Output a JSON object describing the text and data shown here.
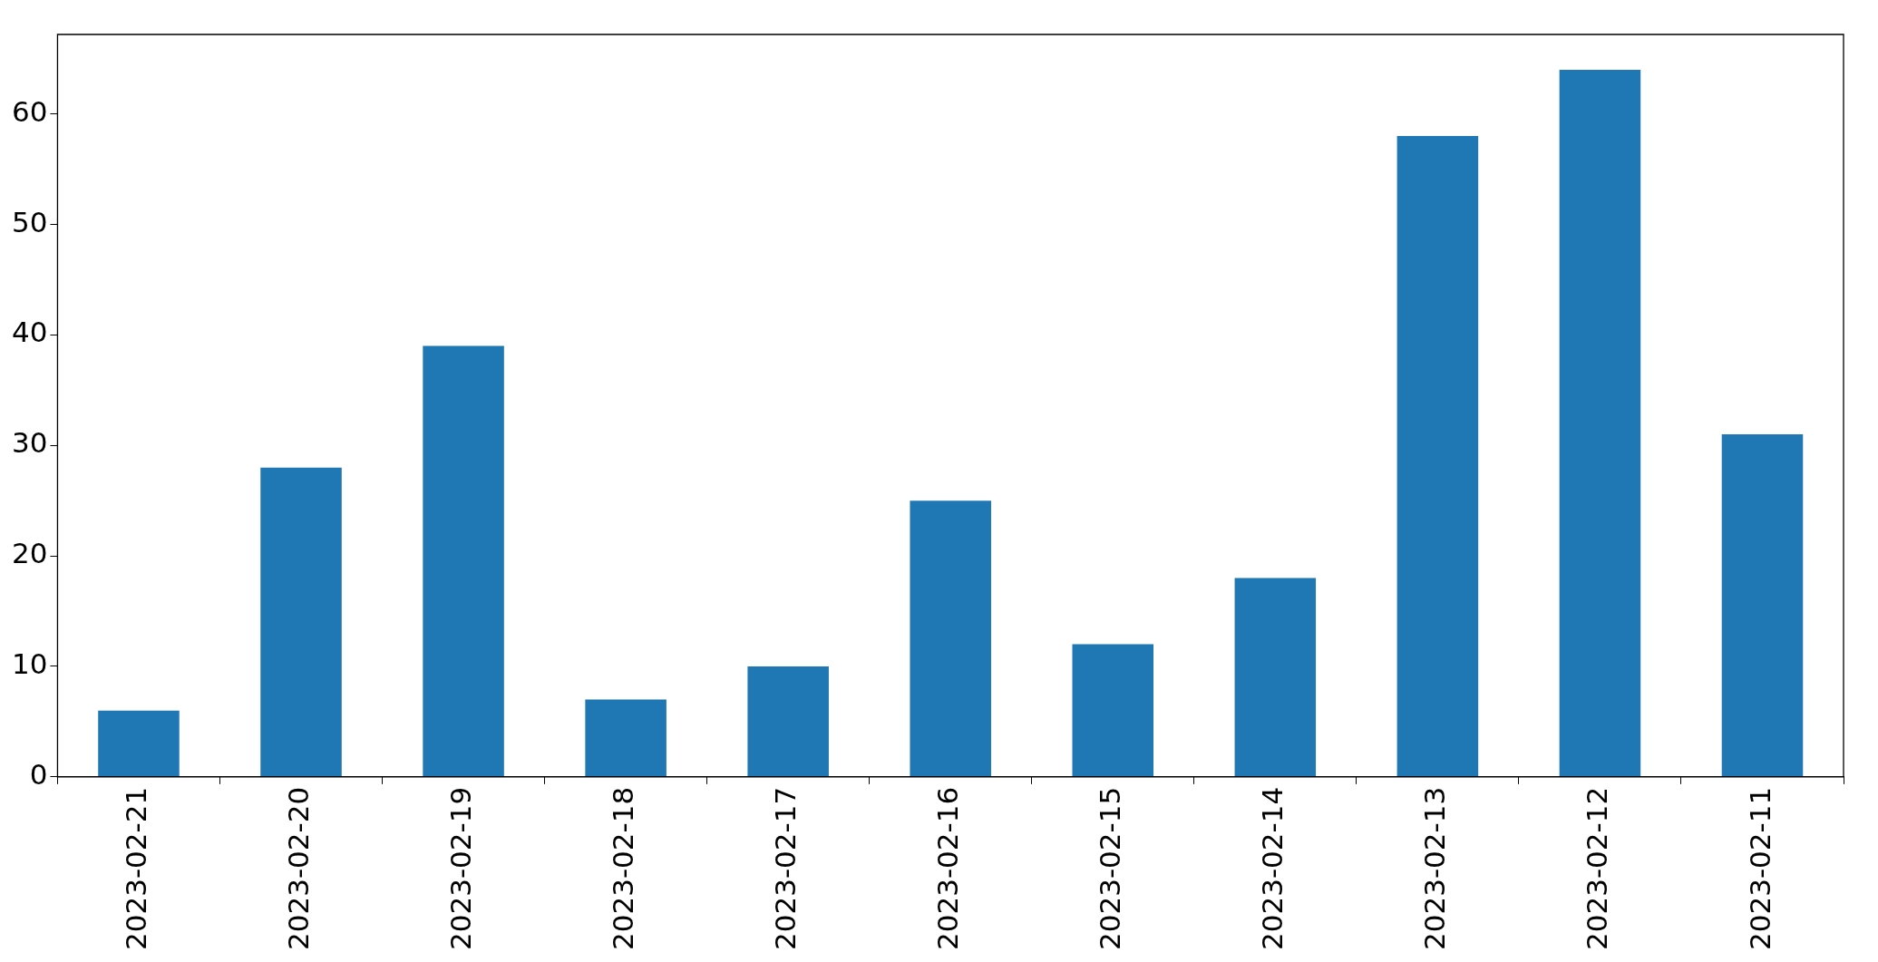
{
  "chart_data": {
    "type": "bar",
    "categories": [
      "2023-02-21",
      "2023-02-20",
      "2023-02-19",
      "2023-02-18",
      "2023-02-17",
      "2023-02-16",
      "2023-02-15",
      "2023-02-14",
      "2023-02-13",
      "2023-02-12",
      "2023-02-11"
    ],
    "values": [
      6,
      28,
      39,
      7,
      10,
      25,
      12,
      18,
      58,
      64,
      31
    ],
    "color": "#1f77b4",
    "ylim": [
      0,
      67.2
    ],
    "yticks": [
      0,
      10,
      20,
      30,
      40,
      50,
      60
    ],
    "grid": false,
    "legend": false
  }
}
